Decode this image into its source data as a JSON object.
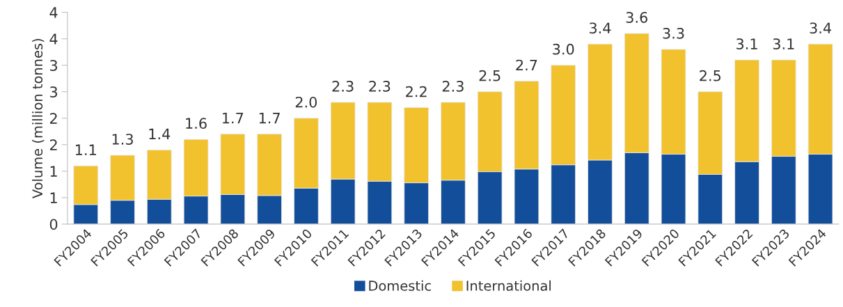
{
  "chart_data": {
    "type": "bar",
    "stacked": true,
    "ylabel": "Volume (million tonnes)",
    "categories": [
      "FY2004",
      "FY2005",
      "FY2006",
      "FY2007",
      "FY2008",
      "FY2009",
      "FY2010",
      "FY2011",
      "FY2012",
      "FY2013",
      "FY2014",
      "FY2015",
      "FY2016",
      "FY2017",
      "FY2018",
      "FY2019",
      "FY2020",
      "FY2021",
      "FY2022",
      "FY2023",
      "FY2024"
    ],
    "series": [
      {
        "name": "Domestic",
        "color": "#134e9a",
        "values": [
          0.37,
          0.45,
          0.47,
          0.53,
          0.56,
          0.54,
          0.68,
          0.85,
          0.81,
          0.78,
          0.83,
          0.99,
          1.04,
          1.12,
          1.21,
          1.35,
          1.32,
          0.94,
          1.18,
          1.28,
          1.32
        ]
      },
      {
        "name": "International",
        "color": "#f2c12e",
        "values": [
          0.73,
          0.85,
          0.93,
          1.07,
          1.14,
          1.16,
          1.32,
          1.45,
          1.49,
          1.42,
          1.47,
          1.51,
          1.66,
          1.88,
          2.19,
          2.25,
          1.98,
          1.56,
          1.92,
          1.82,
          2.08
        ]
      }
    ],
    "totals": [
      "1.1",
      "1.3",
      "1.4",
      "1.6",
      "1.7",
      "1.7",
      "2.0",
      "2.3",
      "2.3",
      "2.2",
      "2.3",
      "2.5",
      "2.7",
      "3.0",
      "3.4",
      "3.6",
      "3.3",
      "2.5",
      "3.1",
      "3.1",
      "3.4"
    ],
    "ylim": [
      0,
      4
    ],
    "yticks": [
      0,
      {
        "value": 0.5,
        "label": "1"
      },
      1,
      {
        "value": 1.5,
        "label": "2"
      },
      2,
      {
        "value": 2.5,
        "label": "3"
      },
      3,
      {
        "value": 3.5,
        "label": "4"
      },
      4
    ],
    "grid": false,
    "legend": "bottom"
  }
}
